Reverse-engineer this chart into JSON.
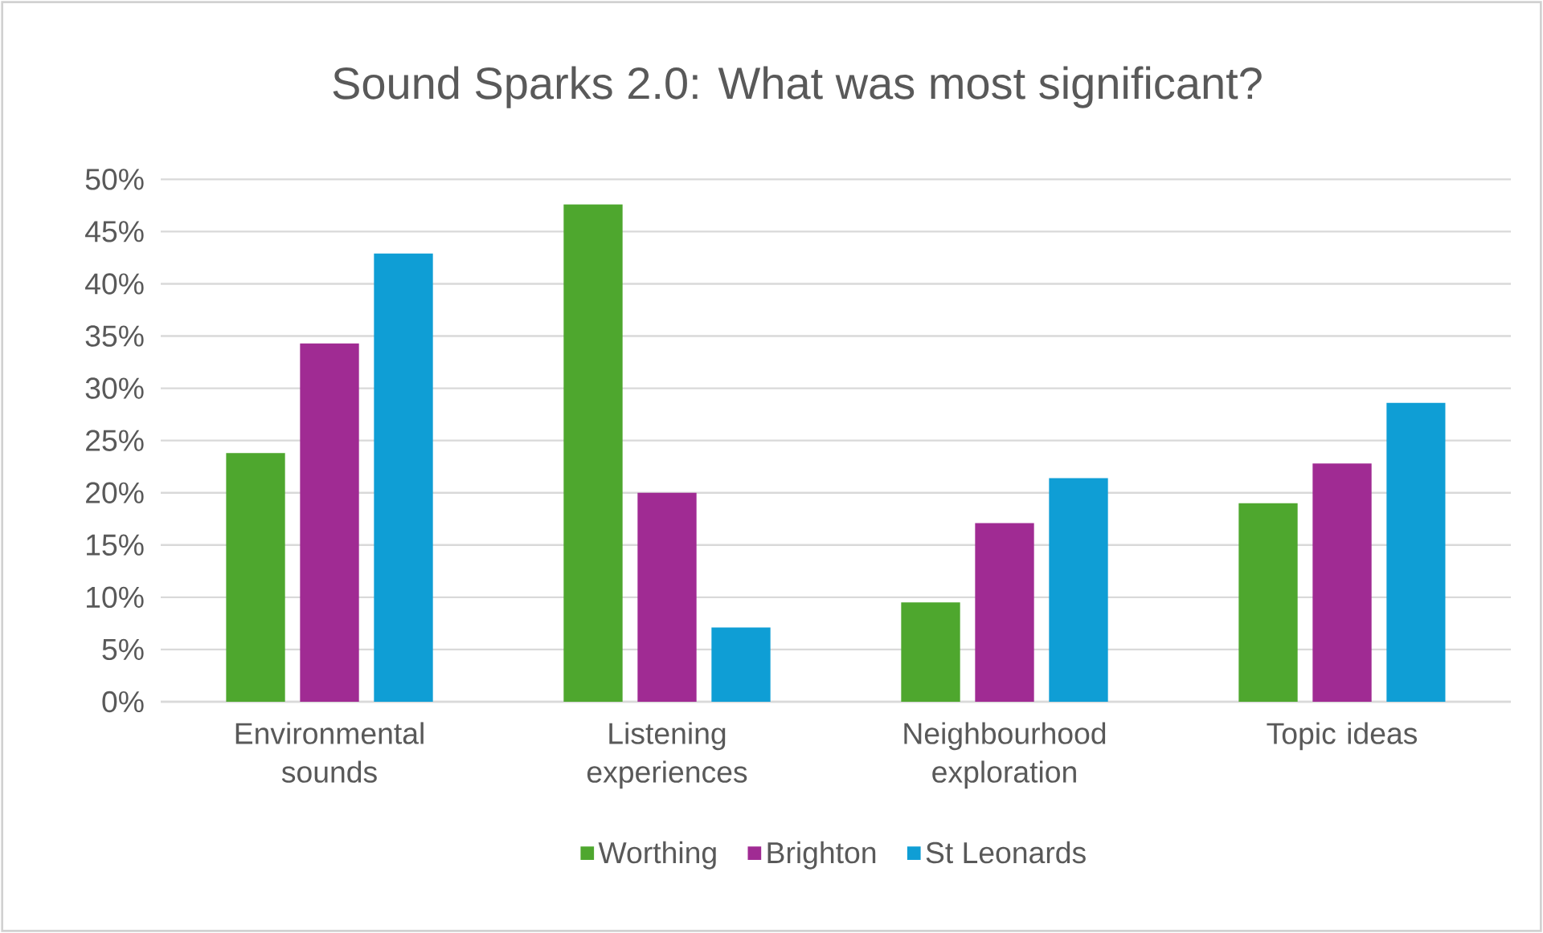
{
  "chart_data": {
    "type": "bar",
    "title": "Sound Sparks 2.0: What was most significant?",
    "categories": [
      "Environmental sounds",
      "Listening experiences",
      "Neighbourhood exploration",
      "Topic ideas"
    ],
    "series": [
      {
        "name": "Worthing",
        "color": "#4ea72e",
        "values": [
          23.8,
          47.6,
          9.5,
          19.0
        ]
      },
      {
        "name": "Brighton",
        "color": "#a02b93",
        "values": [
          34.3,
          20.0,
          17.1,
          22.8
        ]
      },
      {
        "name": "St Leonards",
        "color": "#0f9ed5",
        "values": [
          42.9,
          7.1,
          21.4,
          28.6
        ]
      }
    ],
    "ylim": [
      0,
      50
    ],
    "yticks": [
      {
        "value": 0,
        "label": "0%"
      },
      {
        "value": 5,
        "label": "5%"
      },
      {
        "value": 10,
        "label": "10%"
      },
      {
        "value": 15,
        "label": "15%"
      },
      {
        "value": 20,
        "label": "20%"
      },
      {
        "value": 25,
        "label": "25%"
      },
      {
        "value": 30,
        "label": "30%"
      },
      {
        "value": 35,
        "label": "35%"
      },
      {
        "value": 40,
        "label": "40%"
      },
      {
        "value": 45,
        "label": "45%"
      },
      {
        "value": 50,
        "label": "50%"
      }
    ],
    "grid": "y",
    "legend": "bottom"
  }
}
